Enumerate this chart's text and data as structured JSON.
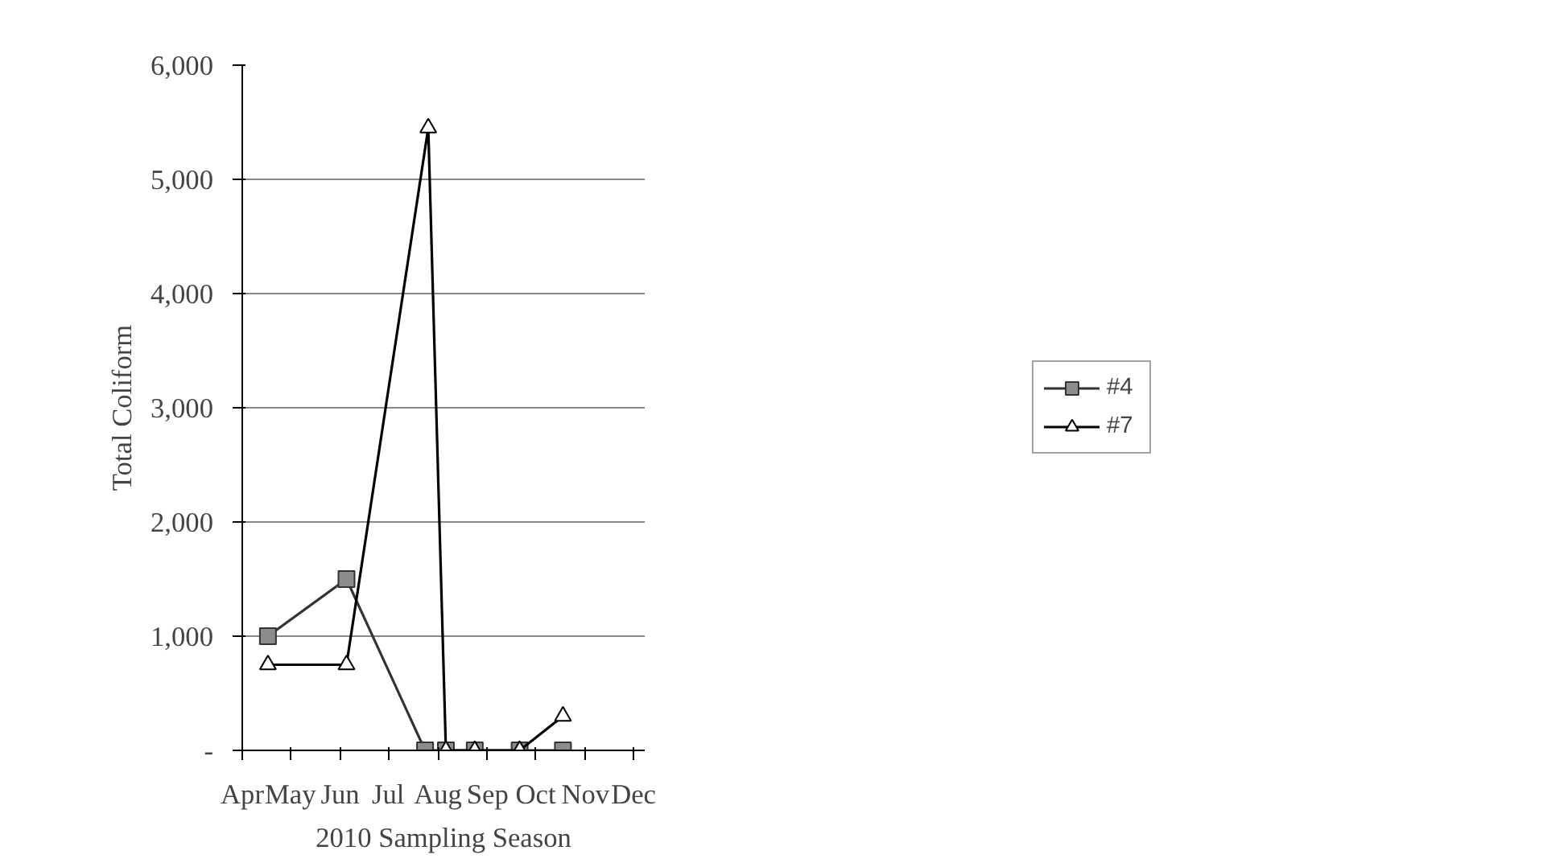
{
  "chart_data": {
    "type": "line",
    "xlabel": "2010 Sampling Season",
    "ylabel": "Total Coliform",
    "xlim": [
      "2010-04-01",
      "2010-12-08"
    ],
    "xticks": [
      {
        "value": "2010-04-01",
        "label": "Apr"
      },
      {
        "value": "2010-05-01",
        "label": "May"
      },
      {
        "value": "2010-06-01",
        "label": "Jun"
      },
      {
        "value": "2010-07-01",
        "label": "Jul"
      },
      {
        "value": "2010-08-01",
        "label": "Aug"
      },
      {
        "value": "2010-09-01",
        "label": "Sep"
      },
      {
        "value": "2010-10-01",
        "label": "Oct"
      },
      {
        "value": "2010-11-01",
        "label": "Nov"
      },
      {
        "value": "2010-12-01",
        "label": "Dec"
      }
    ],
    "ylim": [
      0,
      6000
    ],
    "yticks": [
      {
        "value": 0,
        "label": "-"
      },
      {
        "value": 1000,
        "label": "1,000"
      },
      {
        "value": 2000,
        "label": "2,000"
      },
      {
        "value": 3000,
        "label": "3,000"
      },
      {
        "value": 4000,
        "label": "4,000"
      },
      {
        "value": 5000,
        "label": "5,000"
      },
      {
        "value": 6000,
        "label": "6,000"
      }
    ],
    "grid": "y",
    "legend": "right",
    "line_style": "solid",
    "series": [
      {
        "name": "#4",
        "color": "#333333",
        "marker": "square",
        "x": [
          "2010-04-17",
          "2010-06-05",
          "2010-07-24",
          "2010-08-06",
          "2010-08-24",
          "2010-09-21",
          "2010-10-18"
        ],
        "values": [
          1000,
          1500,
          0,
          0,
          0,
          0,
          0
        ]
      },
      {
        "name": "#7",
        "color": "#000000",
        "marker": "triangle",
        "x": [
          "2010-04-17",
          "2010-06-05",
          "2010-07-26",
          "2010-08-06",
          "2010-08-24",
          "2010-09-21",
          "2010-10-18"
        ],
        "values": [
          750,
          750,
          5450,
          0,
          0,
          0,
          300
        ]
      }
    ]
  }
}
